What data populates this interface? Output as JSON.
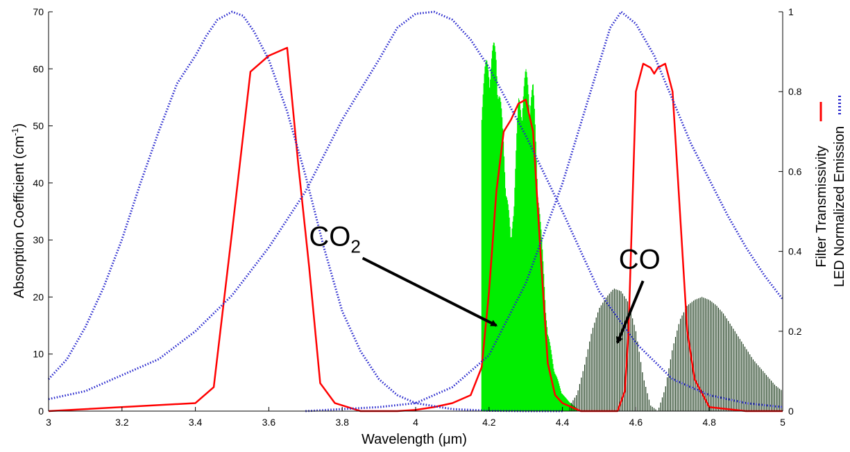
{
  "chart_data": {
    "type": "line",
    "xlabel_prefix": "Wavelength (",
    "xlabel_unit": "μm",
    "xlabel_suffix": ")",
    "ylabel_left_main": "Absorption Coefficient (cm",
    "ylabel_left_sup": "-1",
    "ylabel_left_end": ")",
    "ylabel_right_1": "Filter Transmissivity",
    "ylabel_right_2": "LED Normalized Emission",
    "xlim": [
      3,
      5
    ],
    "ylim_left": [
      0,
      70
    ],
    "ylim_right": [
      0,
      1
    ],
    "x_ticks": [
      "3",
      "3.2",
      "3.4",
      "3.6",
      "3.8",
      "4",
      "4.2",
      "4.4",
      "4.6",
      "4.8",
      "5"
    ],
    "y_left_ticks": [
      "0",
      "10",
      "20",
      "30",
      "40",
      "50",
      "60",
      "70"
    ],
    "y_right_ticks": [
      "0",
      "0.2",
      "0.4",
      "0.6",
      "0.8",
      "1"
    ],
    "colors": {
      "filter": "#ff0000",
      "led": "#2323cc",
      "co2": "#00ee00",
      "co": "#1b3a1b",
      "axis": "#000000",
      "annotation": "#000000"
    },
    "annotations": [
      {
        "text": "CO",
        "sub": "2",
        "target_x": 4.22,
        "target_y": 15,
        "label_x": 3.78,
        "label_y": 29
      },
      {
        "text": "CO",
        "sub": "",
        "target_x": 4.55,
        "target_y": 12,
        "label_x": 4.61,
        "label_y": 25
      }
    ],
    "series": [
      {
        "role": "filter",
        "axis": "right",
        "style": "solid",
        "x": [
          3.0,
          3.4,
          3.45,
          3.5,
          3.55,
          3.6,
          3.65,
          3.68,
          3.71,
          3.74,
          3.78,
          3.85,
          3.95,
          4.0,
          4.05,
          4.1,
          4.15,
          4.18,
          4.2,
          4.22,
          4.24,
          4.26,
          4.28,
          4.3,
          4.32,
          4.34,
          4.36,
          4.38,
          4.4,
          4.45,
          4.55,
          4.57,
          4.58,
          4.6,
          4.62,
          4.64,
          4.65,
          4.66,
          4.68,
          4.7,
          4.72,
          4.74,
          4.76,
          4.8,
          4.9,
          5.0
        ],
        "y": [
          0.0,
          0.02,
          0.06,
          0.45,
          0.85,
          0.89,
          0.91,
          0.62,
          0.36,
          0.07,
          0.02,
          0.0,
          0.0,
          0.003,
          0.01,
          0.02,
          0.04,
          0.11,
          0.3,
          0.55,
          0.7,
          0.73,
          0.77,
          0.78,
          0.7,
          0.4,
          0.12,
          0.04,
          0.02,
          0.0,
          0.0,
          0.05,
          0.2,
          0.8,
          0.87,
          0.86,
          0.845,
          0.86,
          0.87,
          0.8,
          0.5,
          0.2,
          0.08,
          0.01,
          0.0,
          0.0
        ]
      },
      {
        "role": "led",
        "axis": "right",
        "style": "dotted",
        "x": [
          3.0,
          3.05,
          3.1,
          3.15,
          3.2,
          3.25,
          3.3,
          3.35,
          3.4,
          3.43,
          3.46,
          3.5,
          3.53,
          3.56,
          3.6,
          3.65,
          3.7,
          3.75,
          3.8,
          3.85,
          3.9,
          3.95,
          4.0,
          4.1,
          4.2,
          4.3,
          4.4
        ],
        "y": [
          0.08,
          0.13,
          0.21,
          0.31,
          0.43,
          0.57,
          0.7,
          0.82,
          0.89,
          0.94,
          0.98,
          1.0,
          0.99,
          0.95,
          0.88,
          0.75,
          0.59,
          0.41,
          0.25,
          0.15,
          0.08,
          0.04,
          0.02,
          0.005,
          0.001,
          0.0,
          0.0
        ]
      },
      {
        "role": "led",
        "axis": "right",
        "style": "dotted",
        "x": [
          3.0,
          3.1,
          3.2,
          3.3,
          3.4,
          3.5,
          3.6,
          3.7,
          3.8,
          3.9,
          3.95,
          4.0,
          4.05,
          4.1,
          4.15,
          4.2,
          4.3,
          4.4,
          4.5,
          4.6,
          4.7,
          4.8,
          4.9,
          5.0
        ],
        "y": [
          0.03,
          0.05,
          0.09,
          0.13,
          0.2,
          0.29,
          0.41,
          0.55,
          0.73,
          0.88,
          0.96,
          0.995,
          1.0,
          0.98,
          0.93,
          0.86,
          0.69,
          0.5,
          0.3,
          0.17,
          0.08,
          0.04,
          0.02,
          0.01
        ]
      },
      {
        "role": "led",
        "axis": "right",
        "style": "dotted",
        "x": [
          3.7,
          3.9,
          4.0,
          4.1,
          4.2,
          4.3,
          4.4,
          4.45,
          4.5,
          4.53,
          4.56,
          4.6,
          4.65,
          4.7,
          4.75,
          4.8,
          4.85,
          4.9,
          4.95,
          5.0
        ],
        "y": [
          0.0,
          0.01,
          0.02,
          0.06,
          0.14,
          0.32,
          0.57,
          0.72,
          0.87,
          0.96,
          1.0,
          0.97,
          0.89,
          0.78,
          0.67,
          0.58,
          0.49,
          0.41,
          0.34,
          0.28
        ]
      },
      {
        "role": "co2",
        "axis": "left",
        "style": "spectrum",
        "x": [
          4.18,
          4.2,
          4.22,
          4.24,
          4.26,
          4.28,
          4.3,
          4.32,
          4.34,
          4.36,
          4.38,
          4.4,
          4.42,
          4.44
        ],
        "y": [
          58,
          64,
          65,
          48,
          30,
          55,
          60,
          58,
          34,
          14,
          7,
          3,
          1.5,
          0.5
        ]
      },
      {
        "role": "co",
        "axis": "left",
        "style": "spectrum",
        "x": [
          4.42,
          4.44,
          4.46,
          4.48,
          4.5,
          4.52,
          4.54,
          4.56,
          4.58,
          4.6,
          4.62,
          4.64,
          4.66,
          4.68,
          4.7,
          4.72,
          4.74,
          4.76,
          4.78,
          4.8,
          4.82,
          4.84,
          4.86,
          4.88,
          4.9,
          4.92,
          4.94,
          4.96,
          4.98,
          5.0
        ],
        "y": [
          1,
          3,
          8,
          14,
          18,
          20,
          21.5,
          21,
          19,
          14,
          6,
          1,
          0,
          4,
          11,
          16,
          18.5,
          19.5,
          20,
          19.5,
          18.5,
          17,
          15,
          13,
          11,
          9,
          7.5,
          6,
          4.5,
          3.5
        ]
      }
    ]
  }
}
